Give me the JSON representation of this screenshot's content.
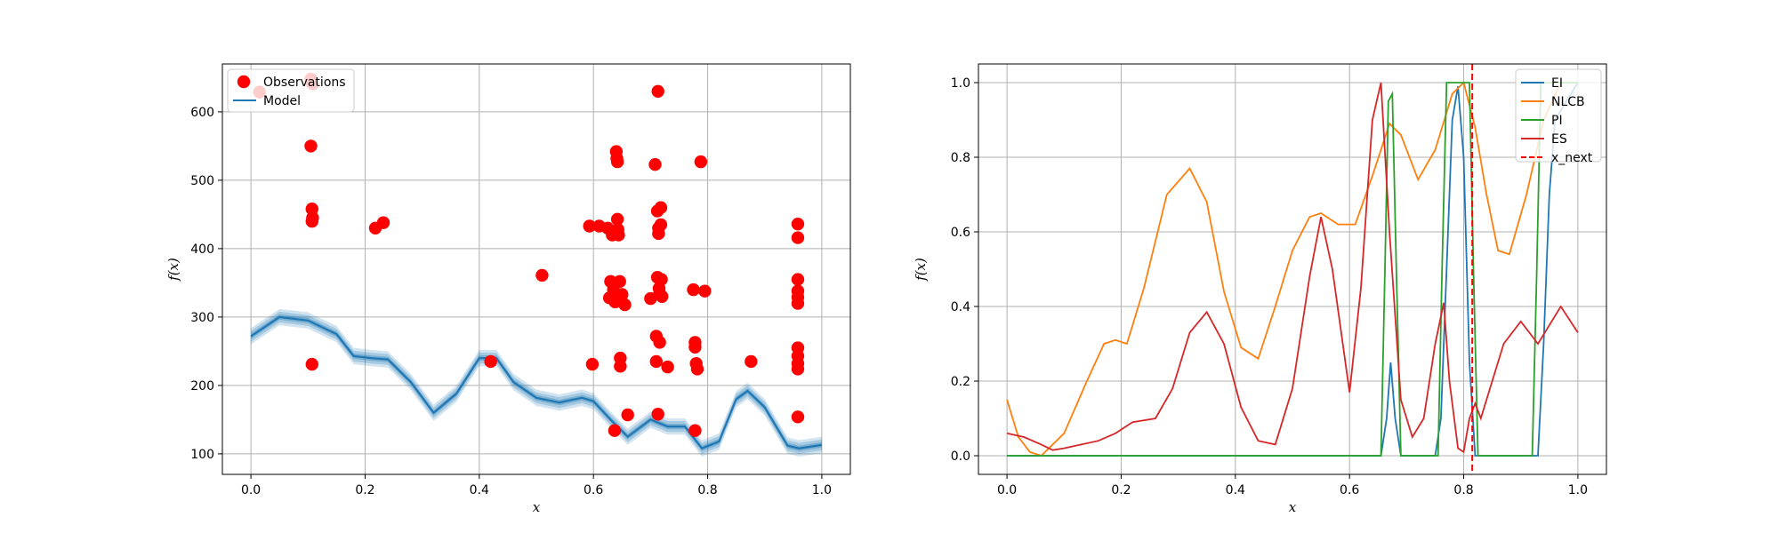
{
  "chart_data": [
    {
      "type": "scatter",
      "xlabel": "x",
      "ylabel": "f(x)",
      "xlim": [
        -0.05,
        1.05
      ],
      "ylim": [
        70,
        670
      ],
      "xticks": [
        "0.0",
        "0.2",
        "0.4",
        "0.6",
        "0.8",
        "1.0"
      ],
      "xtick_values": [
        0,
        0.2,
        0.4,
        0.6,
        0.8,
        1.0
      ],
      "yticks": [
        "100",
        "200",
        "300",
        "400",
        "500",
        "600"
      ],
      "ytick_values": [
        100,
        200,
        300,
        400,
        500,
        600
      ],
      "grid": true,
      "legend_position": "upper-left",
      "legend": [
        {
          "label": "Observations",
          "color": "#ff0000",
          "marker": "circle"
        },
        {
          "label": "Model",
          "color": "#1f77b4",
          "marker": "line"
        }
      ],
      "observations": [
        [
          0.015,
          629
        ],
        [
          0.105,
          648
        ],
        [
          0.105,
          550
        ],
        [
          0.107,
          458
        ],
        [
          0.107,
          440
        ],
        [
          0.108,
          445
        ],
        [
          0.108,
          641
        ],
        [
          0.107,
          231
        ],
        [
          0.218,
          430
        ],
        [
          0.232,
          438
        ],
        [
          0.42,
          235
        ],
        [
          0.51,
          361
        ],
        [
          0.593,
          433
        ],
        [
          0.598,
          231
        ],
        [
          0.61,
          433
        ],
        [
          0.625,
          430
        ],
        [
          0.628,
          328
        ],
        [
          0.63,
          352
        ],
        [
          0.633,
          420
        ],
        [
          0.635,
          340
        ],
        [
          0.637,
          134
        ],
        [
          0.638,
          322
        ],
        [
          0.64,
          542
        ],
        [
          0.641,
          532
        ],
        [
          0.642,
          527
        ],
        [
          0.642,
          443
        ],
        [
          0.643,
          428
        ],
        [
          0.644,
          420
        ],
        [
          0.645,
          325
        ],
        [
          0.646,
          352
        ],
        [
          0.647,
          240
        ],
        [
          0.647,
          228
        ],
        [
          0.65,
          333
        ],
        [
          0.655,
          318
        ],
        [
          0.66,
          157
        ],
        [
          0.7,
          327
        ],
        [
          0.708,
          523
        ],
        [
          0.71,
          272
        ],
        [
          0.71,
          235
        ],
        [
          0.712,
          455
        ],
        [
          0.712,
          358
        ],
        [
          0.713,
          630
        ],
        [
          0.713,
          158
        ],
        [
          0.714,
          430
        ],
        [
          0.714,
          422
        ],
        [
          0.715,
          342
        ],
        [
          0.716,
          263
        ],
        [
          0.716,
          335
        ],
        [
          0.718,
          460
        ],
        [
          0.718,
          435
        ],
        [
          0.719,
          355
        ],
        [
          0.72,
          330
        ],
        [
          0.73,
          227
        ],
        [
          0.775,
          340
        ],
        [
          0.778,
          263
        ],
        [
          0.778,
          256
        ],
        [
          0.778,
          134
        ],
        [
          0.78,
          232
        ],
        [
          0.782,
          224
        ],
        [
          0.788,
          527
        ],
        [
          0.795,
          338
        ],
        [
          0.876,
          235
        ],
        [
          0.958,
          436
        ],
        [
          0.958,
          416
        ],
        [
          0.958,
          355
        ],
        [
          0.958,
          338
        ],
        [
          0.958,
          329
        ],
        [
          0.958,
          320
        ],
        [
          0.958,
          255
        ],
        [
          0.958,
          243
        ],
        [
          0.958,
          232
        ],
        [
          0.958,
          224
        ],
        [
          0.958,
          154
        ]
      ],
      "model": {
        "x": [
          0.0,
          0.05,
          0.1,
          0.15,
          0.18,
          0.21,
          0.24,
          0.28,
          0.32,
          0.36,
          0.4,
          0.43,
          0.46,
          0.5,
          0.54,
          0.58,
          0.6,
          0.63,
          0.66,
          0.7,
          0.73,
          0.76,
          0.79,
          0.82,
          0.85,
          0.87,
          0.9,
          0.94,
          0.96,
          1.0
        ],
        "y": [
          272,
          300,
          295,
          275,
          243,
          240,
          238,
          205,
          160,
          188,
          240,
          240,
          205,
          182,
          175,
          182,
          177,
          150,
          125,
          150,
          140,
          140,
          108,
          118,
          180,
          192,
          168,
          112,
          108,
          113
        ],
        "band_width": 12
      }
    },
    {
      "type": "line",
      "xlabel": "x",
      "ylabel": "f(x)",
      "xlim": [
        -0.05,
        1.05
      ],
      "ylim": [
        -0.05,
        1.05
      ],
      "xticks": [
        "0.0",
        "0.2",
        "0.4",
        "0.6",
        "0.8",
        "1.0"
      ],
      "xtick_values": [
        0,
        0.2,
        0.4,
        0.6,
        0.8,
        1.0
      ],
      "yticks": [
        "0.0",
        "0.2",
        "0.4",
        "0.6",
        "0.8",
        "1.0"
      ],
      "ytick_values": [
        0,
        0.2,
        0.4,
        0.6,
        0.8,
        1.0
      ],
      "grid": true,
      "legend_position": "upper-right",
      "x_next": 0.815,
      "series": [
        {
          "name": "EI",
          "color": "#1f77b4",
          "x": [
            0.0,
            0.655,
            0.665,
            0.672,
            0.68,
            0.69,
            0.75,
            0.76,
            0.77,
            0.78,
            0.79,
            0.8,
            0.81,
            0.82,
            0.93,
            0.94,
            0.95,
            0.96,
            1.0
          ],
          "y": [
            0,
            0,
            0.1,
            0.25,
            0.1,
            0,
            0,
            0.1,
            0.5,
            0.9,
            0.99,
            0.8,
            0.25,
            0,
            0,
            0.3,
            0.7,
            0.9,
            1.0
          ]
        },
        {
          "name": "NLCB",
          "color": "#ff7f0e",
          "x": [
            0.0,
            0.02,
            0.04,
            0.06,
            0.1,
            0.14,
            0.17,
            0.19,
            0.21,
            0.24,
            0.28,
            0.32,
            0.35,
            0.38,
            0.41,
            0.44,
            0.47,
            0.5,
            0.53,
            0.55,
            0.58,
            0.61,
            0.64,
            0.67,
            0.69,
            0.72,
            0.75,
            0.78,
            0.8,
            0.82,
            0.84,
            0.86,
            0.88,
            0.91,
            0.94,
            0.97,
            1.0
          ],
          "y": [
            0.15,
            0.05,
            0.01,
            0.0,
            0.06,
            0.2,
            0.3,
            0.31,
            0.3,
            0.45,
            0.7,
            0.77,
            0.68,
            0.44,
            0.29,
            0.26,
            0.4,
            0.55,
            0.64,
            0.65,
            0.62,
            0.62,
            0.75,
            0.89,
            0.86,
            0.74,
            0.82,
            0.97,
            1.0,
            0.88,
            0.7,
            0.55,
            0.54,
            0.7,
            0.9,
            1.0,
            1.0
          ]
        },
        {
          "name": "PI",
          "color": "#2ca02c",
          "x": [
            0.0,
            0.655,
            0.662,
            0.668,
            0.675,
            0.682,
            0.69,
            0.755,
            0.762,
            0.77,
            0.8,
            0.81,
            0.817,
            0.825,
            0.92,
            0.928,
            0.935,
            1.0
          ],
          "y": [
            0,
            0,
            0.5,
            0.95,
            0.97,
            0.5,
            0,
            0,
            0.5,
            1.0,
            1.0,
            1.0,
            0.5,
            0,
            0,
            0.5,
            1.0,
            1.0
          ]
        },
        {
          "name": "ES",
          "color": "#d62728",
          "x": [
            0.0,
            0.03,
            0.06,
            0.08,
            0.1,
            0.13,
            0.16,
            0.19,
            0.22,
            0.26,
            0.29,
            0.32,
            0.35,
            0.38,
            0.41,
            0.44,
            0.47,
            0.5,
            0.53,
            0.55,
            0.57,
            0.6,
            0.62,
            0.64,
            0.655,
            0.67,
            0.69,
            0.71,
            0.73,
            0.75,
            0.765,
            0.775,
            0.79,
            0.8,
            0.81,
            0.82,
            0.83,
            0.85,
            0.87,
            0.9,
            0.93,
            0.97,
            1.0
          ],
          "y": [
            0.06,
            0.05,
            0.03,
            0.015,
            0.02,
            0.03,
            0.04,
            0.06,
            0.09,
            0.1,
            0.18,
            0.33,
            0.385,
            0.3,
            0.13,
            0.04,
            0.03,
            0.18,
            0.48,
            0.64,
            0.5,
            0.17,
            0.45,
            0.9,
            1.0,
            0.6,
            0.15,
            0.05,
            0.1,
            0.3,
            0.41,
            0.2,
            0.02,
            0.01,
            0.1,
            0.14,
            0.1,
            0.2,
            0.3,
            0.36,
            0.3,
            0.4,
            0.33
          ]
        }
      ]
    }
  ]
}
